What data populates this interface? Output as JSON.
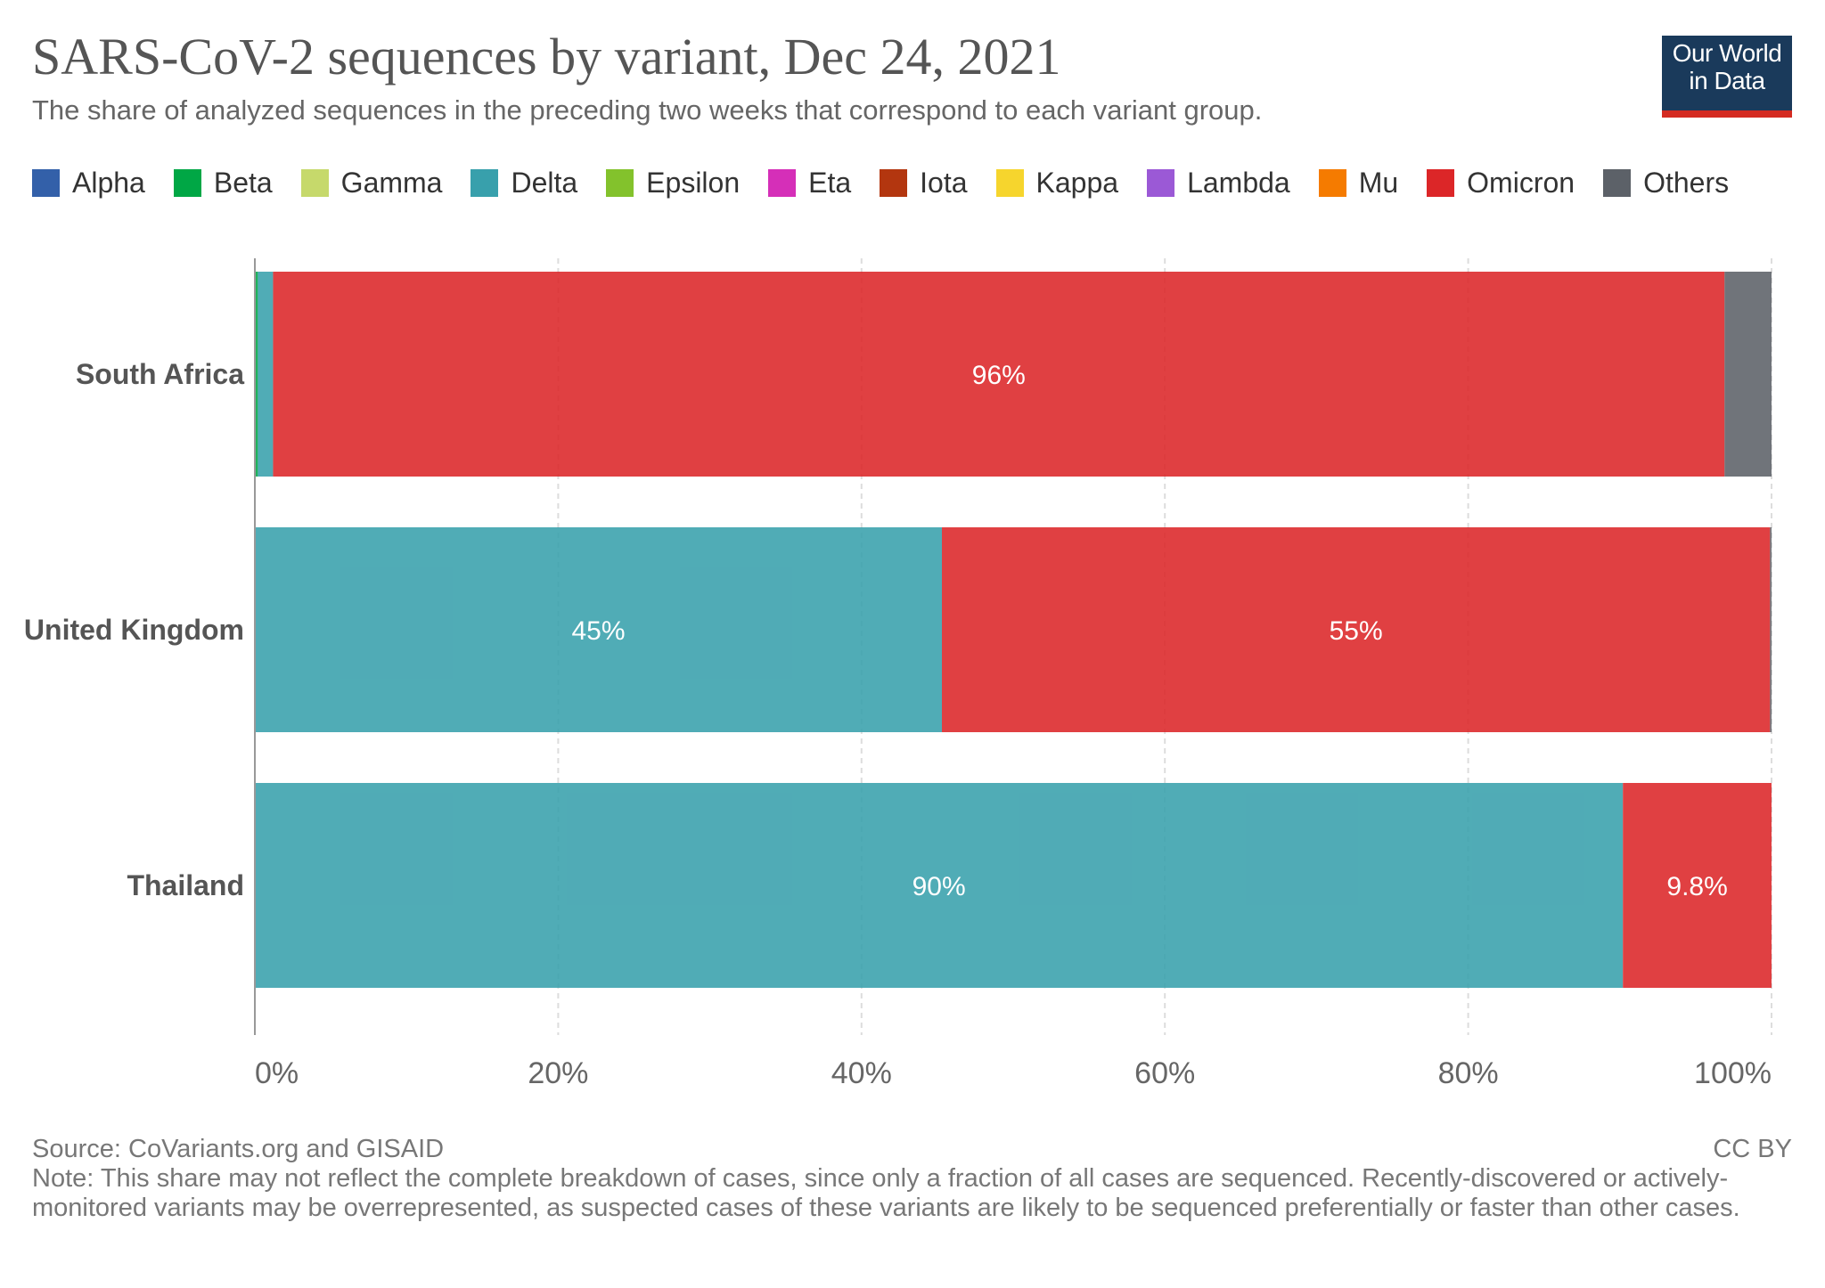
{
  "header": {
    "title": "SARS-CoV-2 sequences by variant, Dec 24, 2021",
    "subtitle": "The share of analyzed sequences in the preceding two weeks that correspond to each variant group.",
    "logo_line1": "Our World",
    "logo_line2": "in Data"
  },
  "legend": [
    {
      "label": "Alpha",
      "color": "#3360a9"
    },
    {
      "label": "Beta",
      "color": "#00a745"
    },
    {
      "label": "Gamma",
      "color": "#c6d96b"
    },
    {
      "label": "Delta",
      "color": "#38a0ac"
    },
    {
      "label": "Epsilon",
      "color": "#83c22c"
    },
    {
      "label": "Eta",
      "color": "#d52fb8"
    },
    {
      "label": "Iota",
      "color": "#b3360f"
    },
    {
      "label": "Kappa",
      "color": "#f6d52d"
    },
    {
      "label": "Lambda",
      "color": "#9b59d6"
    },
    {
      "label": "Mu",
      "color": "#f57b00"
    },
    {
      "label": "Omicron",
      "color": "#dc2628"
    },
    {
      "label": "Others",
      "color": "#5c6168"
    }
  ],
  "chart_data": {
    "type": "bar",
    "orientation": "horizontal",
    "stacked": true,
    "title": "SARS-CoV-2 sequences by variant, Dec 24, 2021",
    "categories": [
      "South Africa",
      "United Kingdom",
      "Thailand"
    ],
    "series": [
      {
        "name": "Beta",
        "color": "#00a745",
        "values": [
          0.2,
          0,
          0
        ]
      },
      {
        "name": "Delta",
        "color": "#38a0ac",
        "values": [
          1.0,
          45.3,
          90.2
        ]
      },
      {
        "name": "Omicron",
        "color": "#dc2628",
        "values": [
          95.7,
          54.6,
          9.8
        ]
      },
      {
        "name": "Others",
        "color": "#5c6168",
        "values": [
          3.1,
          0.1,
          0
        ]
      }
    ],
    "data_labels": [
      {
        "category": "South Africa",
        "series": "Omicron",
        "text": "96%"
      },
      {
        "category": "United Kingdom",
        "series": "Delta",
        "text": "45%"
      },
      {
        "category": "United Kingdom",
        "series": "Omicron",
        "text": "55%"
      },
      {
        "category": "Thailand",
        "series": "Delta",
        "text": "90%"
      },
      {
        "category": "Thailand",
        "series": "Omicron",
        "text": "9.8%"
      }
    ],
    "x_ticks": [
      {
        "value": 0,
        "label": "0%"
      },
      {
        "value": 20,
        "label": "20%"
      },
      {
        "value": 40,
        "label": "40%"
      },
      {
        "value": 60,
        "label": "60%"
      },
      {
        "value": 80,
        "label": "80%"
      },
      {
        "value": 100,
        "label": "100%"
      }
    ],
    "xlim": [
      0,
      100
    ],
    "grid": true,
    "xlabel": "",
    "ylabel": ""
  },
  "footer": {
    "source": "Source: CoVariants.org and GISAID",
    "license": "CC BY",
    "note": "Note: This share may not reflect the complete breakdown of cases, since only a fraction of all cases are sequenced. Recently-discovered or actively-monitored variants may be overrepresented, as suspected cases of these variants are likely to be sequenced preferentially or faster than other cases."
  }
}
